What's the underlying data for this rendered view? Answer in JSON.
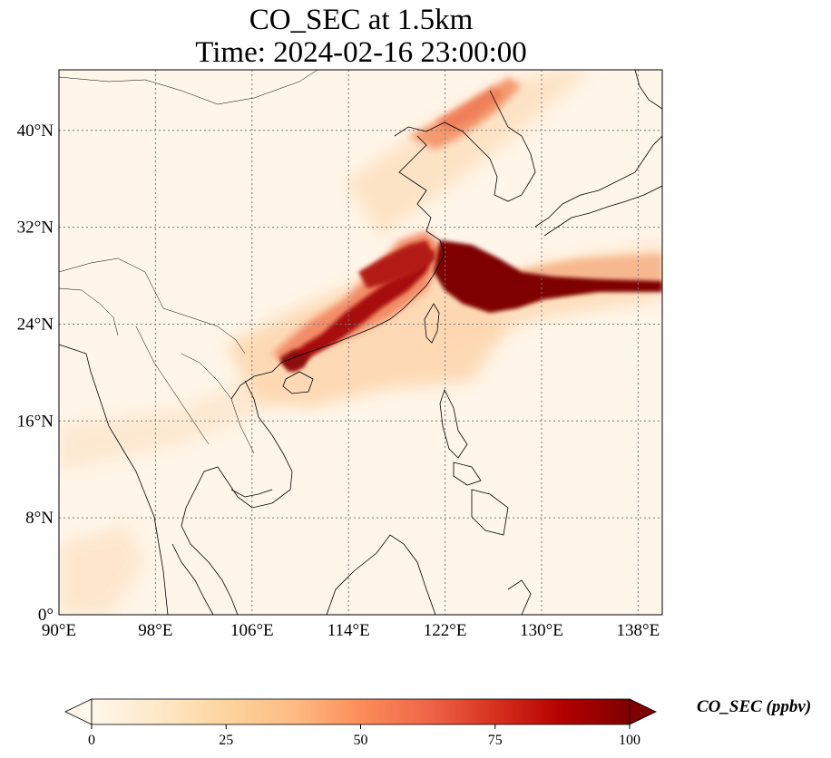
{
  "title_line1": "CO_SEC at 1.5km",
  "title_line2": "Time: 2024-02-16 23:00:00",
  "map": {
    "lon_range": [
      90,
      140
    ],
    "lat_range": [
      0,
      45
    ],
    "x_ticks": [
      "90°E",
      "98°E",
      "106°E",
      "114°E",
      "122°E",
      "130°E",
      "138°E"
    ],
    "x_tick_values": [
      90,
      98,
      106,
      114,
      122,
      130,
      138
    ],
    "y_ticks": [
      "0°",
      "8°N",
      "16°N",
      "24°N",
      "32°N",
      "40°N"
    ],
    "y_tick_values": [
      0,
      8,
      16,
      24,
      32,
      40
    ],
    "gridlines": true,
    "colormap": "OrRd",
    "background_color": "#fff5e8",
    "plume_color": "#7f0000"
  },
  "colorbar": {
    "label": "CO_SEC (ppbv)",
    "range": [
      0,
      100
    ],
    "ticks": [
      "0",
      "25",
      "50",
      "75",
      "100"
    ],
    "tick_values": [
      0,
      25,
      50,
      75,
      100
    ],
    "extend": "both",
    "orientation": "horizontal",
    "colors": [
      "#fff7ec",
      "#fee8c8",
      "#fdd49e",
      "#fdbb84",
      "#fc8d59",
      "#ef6548",
      "#d7301f",
      "#b30000",
      "#7f0000"
    ]
  }
}
